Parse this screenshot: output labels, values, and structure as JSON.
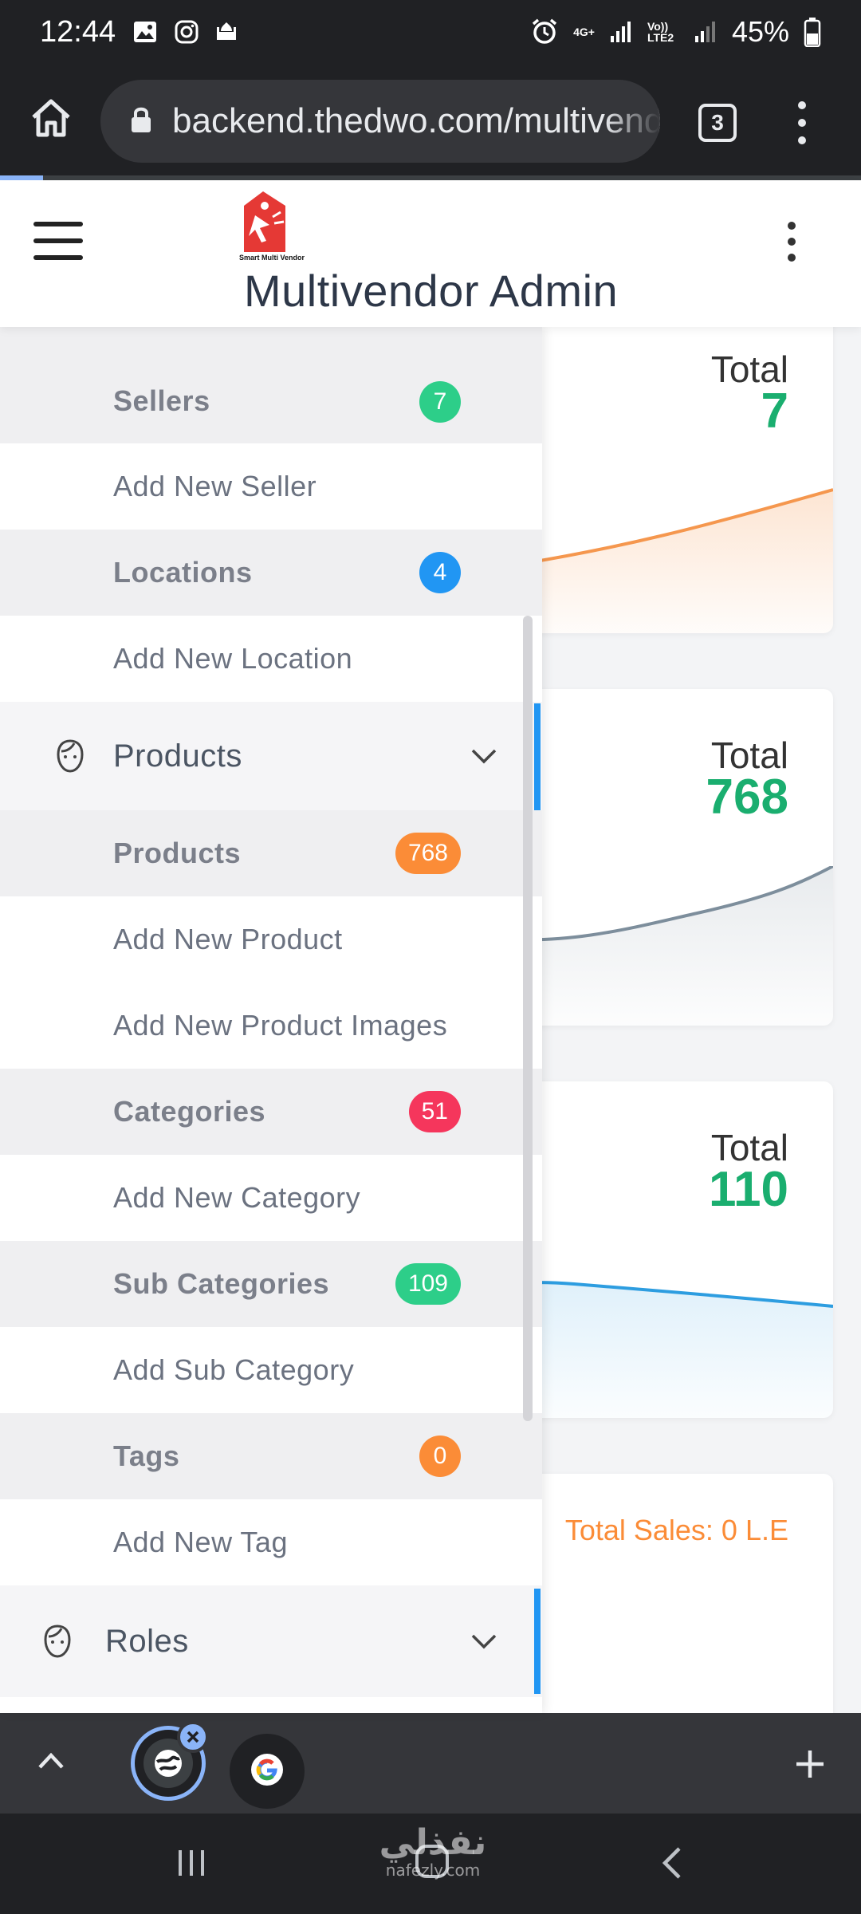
{
  "status_bar": {
    "time": "12:44",
    "net_type": "4G+",
    "volte": "Vo)) LTE2",
    "battery": "45%"
  },
  "browser": {
    "url": "backend.thedwo.com/multivendor",
    "tab_count": "3",
    "load_progress_percent": 5
  },
  "header": {
    "logo_caption": "Smart Multi Vendor",
    "title": "Multivendor Admin"
  },
  "cards": [
    {
      "label": "Total",
      "value": "7",
      "wave_color": "#f5974e"
    },
    {
      "label": "Total",
      "value": "768",
      "wave_color": "#7d8e9c"
    },
    {
      "label": "Total",
      "value": "110",
      "wave_color": "#2d9de0"
    }
  ],
  "sales": {
    "text": "Total Sales: 0 L.E"
  },
  "sidebar": {
    "sellers": {
      "label": "Sellers",
      "badge": "7",
      "badge_color": "#2dce89"
    },
    "add_new_seller": "Add New Seller",
    "locations": {
      "label": "Locations",
      "badge": "4",
      "badge_color": "#2196f3"
    },
    "add_new_location": "Add New Location",
    "products_section": "Products",
    "products": {
      "label": "Products",
      "badge": "768",
      "badge_color": "#fb8c37"
    },
    "add_new_product": "Add New Product",
    "add_new_product_images": "Add New Product Images",
    "categories": {
      "label": "Categories",
      "badge": "51",
      "badge_color": "#f5365c"
    },
    "add_new_category": "Add New Category",
    "sub_categories": {
      "label": "Sub Categories",
      "badge": "109",
      "badge_color": "#2dce89"
    },
    "add_sub_category": "Add Sub Category",
    "tags": {
      "label": "Tags",
      "badge": "0",
      "badge_color": "#fb8c37"
    },
    "add_new_tag": "Add New Tag",
    "roles_section": "Roles"
  },
  "watermark": {
    "arabic": "نفذلي",
    "latin": "nafezly.com"
  }
}
